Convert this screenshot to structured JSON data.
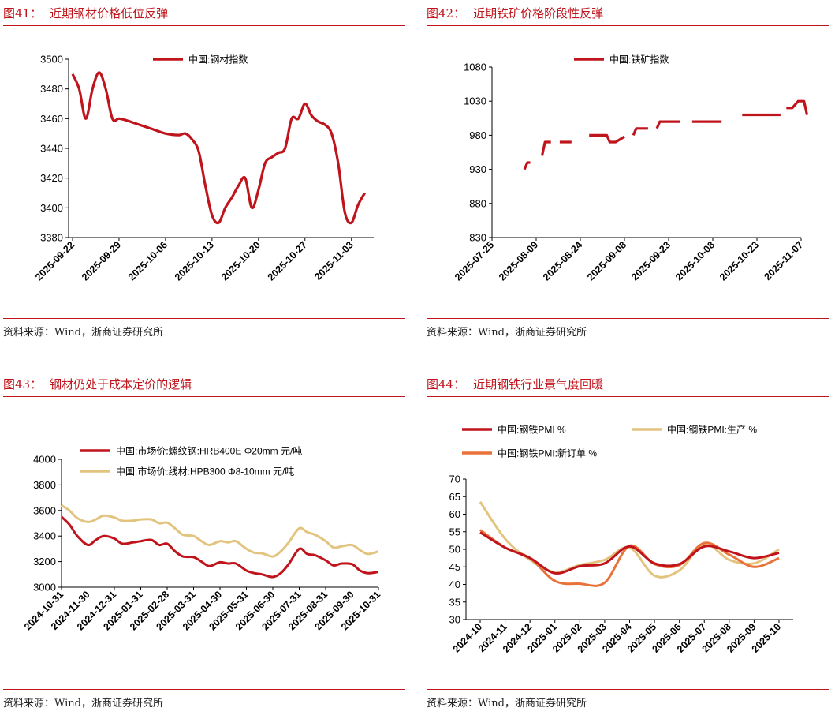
{
  "charts": [
    {
      "figure_label": "图41：",
      "figure_title": "近期钢材价格低位反弹",
      "source": "资料来源：Wind，浙商证券研究所"
    },
    {
      "figure_label": "图42：",
      "figure_title": "近期铁矿价格阶段性反弹",
      "source": "资料来源：Wind，浙商证券研究所"
    },
    {
      "figure_label": "图43：",
      "figure_title": "钢材仍处于成本定价的逻辑",
      "source": "资料来源：Wind，浙商证券研究所"
    },
    {
      "figure_label": "图44：",
      "figure_title": "近期钢铁行业景气度回暖",
      "source": "资料来源：Wind，浙商证券研究所"
    }
  ],
  "chart_data": [
    {
      "type": "line",
      "title": "近期钢材价格低位反弹",
      "ylim": [
        3380,
        3500
      ],
      "yticks": [
        3380,
        3400,
        3420,
        3440,
        3460,
        3480,
        3500
      ],
      "xlim": [
        0,
        45
      ],
      "x_tick_positions": [
        0,
        7,
        14,
        21,
        28,
        35,
        42
      ],
      "x_tick_labels": [
        "2025-09-22",
        "2025-09-29",
        "2025-10-06",
        "2025-10-13",
        "2025-10-20",
        "2025-10-27",
        "2025-11-03"
      ],
      "color": "#c0141c",
      "series": [
        {
          "name": "中国:钢材指数",
          "points": [
            [
              0,
              3490
            ],
            [
              1,
              3480
            ],
            [
              2,
              3460
            ],
            [
              3,
              3480
            ],
            [
              4,
              3491
            ],
            [
              5,
              3480
            ],
            [
              6,
              3460
            ],
            [
              7,
              3460
            ],
            [
              8,
              3459
            ],
            [
              10,
              3456
            ],
            [
              12,
              3453
            ],
            [
              14,
              3450
            ],
            [
              16,
              3449
            ],
            [
              17,
              3450
            ],
            [
              18,
              3446
            ],
            [
              19,
              3438
            ],
            [
              20,
              3415
            ],
            [
              21,
              3395
            ],
            [
              22,
              3390
            ],
            [
              23,
              3400
            ],
            [
              24,
              3407
            ],
            [
              25,
              3415
            ],
            [
              26,
              3420
            ],
            [
              27,
              3400
            ],
            [
              28,
              3412
            ],
            [
              29,
              3430
            ],
            [
              30,
              3434
            ],
            [
              31,
              3437
            ],
            [
              32,
              3440
            ],
            [
              33,
              3460
            ],
            [
              34,
              3460
            ],
            [
              35,
              3470
            ],
            [
              36,
              3462
            ],
            [
              37,
              3458
            ],
            [
              38,
              3456
            ],
            [
              39,
              3450
            ],
            [
              40,
              3430
            ],
            [
              41,
              3397
            ],
            [
              42,
              3390
            ],
            [
              43,
              3402
            ],
            [
              44,
              3410
            ]
          ]
        }
      ]
    },
    {
      "type": "line",
      "title": "近期铁矿价格阶段性反弹",
      "ylim": [
        830,
        1080
      ],
      "yticks": [
        830,
        880,
        930,
        980,
        1030,
        1080
      ],
      "xlim": [
        0,
        105
      ],
      "x_tick_positions": [
        0,
        15,
        30,
        45,
        60,
        75,
        90,
        105
      ],
      "x_tick_labels": [
        "2025-07-25",
        "2025-08-09",
        "2025-08-24",
        "2025-09-08",
        "2025-09-23",
        "2025-10-08",
        "2025-10-23",
        "2025-11-07"
      ],
      "color": "#c0141c",
      "series": [
        {
          "name": "中国:铁矿指数",
          "segments": [
            [
              [
                11,
                930
              ],
              [
                12,
                940
              ],
              [
                13,
                940
              ]
            ],
            [
              [
                17,
                950
              ],
              [
                18,
                970
              ],
              [
                20,
                970
              ]
            ],
            [
              [
                23,
                970
              ],
              [
                27,
                970
              ]
            ],
            [
              [
                33,
                980
              ],
              [
                39,
                980
              ],
              [
                40,
                970
              ],
              [
                42,
                970
              ],
              [
                45,
                978
              ]
            ],
            [
              [
                48,
                980
              ],
              [
                49,
                990
              ],
              [
                53,
                990
              ]
            ],
            [
              [
                56,
                990
              ],
              [
                57,
                1000
              ],
              [
                64,
                1000
              ]
            ],
            [
              [
                68,
                1000
              ],
              [
                78,
                1000
              ]
            ],
            [
              [
                85,
                1010
              ],
              [
                98,
                1010
              ]
            ],
            [
              [
                100,
                1020
              ],
              [
                102,
                1020
              ],
              [
                104,
                1030
              ],
              [
                106,
                1030
              ],
              [
                107,
                1010
              ]
            ]
          ]
        }
      ]
    },
    {
      "type": "line",
      "title": "钢材仍处于成本定价的逻辑",
      "ylim": [
        3000,
        4000
      ],
      "yticks": [
        3000,
        3200,
        3400,
        3600,
        3800,
        4000
      ],
      "xlim": [
        0,
        12
      ],
      "x_tick_labels": [
        "2024-10-31",
        "2024-11-30",
        "2024-12-31",
        "2025-01-31",
        "2025-02-28",
        "2025-03-31",
        "2025-04-30",
        "2025-05-31",
        "2025-06-30",
        "2025-07-31",
        "2025-08-31",
        "2025-09-30",
        "2025-10-31"
      ],
      "series": [
        {
          "name": "中国:市场价:螺纹钢:HRB400E Φ20mm 元/吨",
          "color": "#c0141c",
          "points": [
            [
              0,
              3550
            ],
            [
              0.3,
              3490
            ],
            [
              0.6,
              3400
            ],
            [
              1,
              3330
            ],
            [
              1.3,
              3370
            ],
            [
              1.6,
              3400
            ],
            [
              2,
              3380
            ],
            [
              2.3,
              3340
            ],
            [
              2.7,
              3350
            ],
            [
              3,
              3360
            ],
            [
              3.4,
              3370
            ],
            [
              3.7,
              3330
            ],
            [
              4,
              3340
            ],
            [
              4.3,
              3280
            ],
            [
              4.6,
              3240
            ],
            [
              5,
              3235
            ],
            [
              5.3,
              3200
            ],
            [
              5.6,
              3165
            ],
            [
              6,
              3195
            ],
            [
              6.3,
              3185
            ],
            [
              6.6,
              3185
            ],
            [
              7,
              3130
            ],
            [
              7.3,
              3110
            ],
            [
              7.6,
              3100
            ],
            [
              8,
              3080
            ],
            [
              8.3,
              3110
            ],
            [
              8.6,
              3180
            ],
            [
              9,
              3300
            ],
            [
              9.3,
              3260
            ],
            [
              9.6,
              3250
            ],
            [
              10,
              3210
            ],
            [
              10.3,
              3170
            ],
            [
              10.6,
              3185
            ],
            [
              11,
              3180
            ],
            [
              11.3,
              3130
            ],
            [
              11.6,
              3110
            ],
            [
              12,
              3120
            ]
          ]
        },
        {
          "name": "中国:市场价:线材:HPB300 Φ8-10mm 元/吨",
          "color": "#e3c47f",
          "points": [
            [
              0,
              3640
            ],
            [
              0.3,
              3600
            ],
            [
              0.6,
              3540
            ],
            [
              1,
              3510
            ],
            [
              1.3,
              3530
            ],
            [
              1.6,
              3560
            ],
            [
              2,
              3545
            ],
            [
              2.3,
              3520
            ],
            [
              2.7,
              3520
            ],
            [
              3,
              3530
            ],
            [
              3.4,
              3530
            ],
            [
              3.7,
              3500
            ],
            [
              4,
              3505
            ],
            [
              4.3,
              3460
            ],
            [
              4.6,
              3410
            ],
            [
              5,
              3400
            ],
            [
              5.3,
              3360
            ],
            [
              5.6,
              3330
            ],
            [
              6,
              3360
            ],
            [
              6.3,
              3350
            ],
            [
              6.6,
              3360
            ],
            [
              7,
              3300
            ],
            [
              7.3,
              3270
            ],
            [
              7.6,
              3265
            ],
            [
              8,
              3240
            ],
            [
              8.3,
              3280
            ],
            [
              8.6,
              3350
            ],
            [
              9,
              3460
            ],
            [
              9.3,
              3430
            ],
            [
              9.6,
              3410
            ],
            [
              10,
              3360
            ],
            [
              10.3,
              3310
            ],
            [
              10.6,
              3320
            ],
            [
              11,
              3330
            ],
            [
              11.3,
              3290
            ],
            [
              11.6,
              3260
            ],
            [
              12,
              3280
            ]
          ]
        }
      ]
    },
    {
      "type": "line",
      "title": "近期钢铁行业景气度回暖",
      "ylim": [
        30,
        70
      ],
      "yticks": [
        30,
        35,
        40,
        45,
        50,
        55,
        60,
        65,
        70
      ],
      "x_tick_labels": [
        "2024-10",
        "2024-11",
        "2024-12",
        "2025-01",
        "2025-02",
        "2025-03",
        "2025-04",
        "2025-05",
        "2025-06",
        "2025-07",
        "2025-08",
        "2025-09",
        "2025-10"
      ],
      "series": [
        {
          "name": "中国:钢铁PMI %",
          "color": "#c0141c",
          "values": [
            54.8,
            50.5,
            47.5,
            43.2,
            45.2,
            46.0,
            50.8,
            46.0,
            45.8,
            50.8,
            49.4,
            47.5,
            49.0
          ]
        },
        {
          "name": "中国:钢铁PMI:生产 %",
          "color": "#e3c47f",
          "values": [
            63.5,
            53.0,
            47.0,
            43.5,
            45.5,
            47.0,
            50.5,
            42.5,
            44.0,
            51.5,
            47.0,
            46.0,
            50.0
          ]
        },
        {
          "name": "中国:钢铁PMI:新订单 %",
          "color": "#e9723a",
          "values": [
            55.5,
            50.5,
            47.5,
            41.0,
            40.2,
            40.5,
            51.0,
            45.8,
            45.5,
            51.8,
            48.5,
            45.0,
            47.5
          ]
        }
      ]
    }
  ]
}
